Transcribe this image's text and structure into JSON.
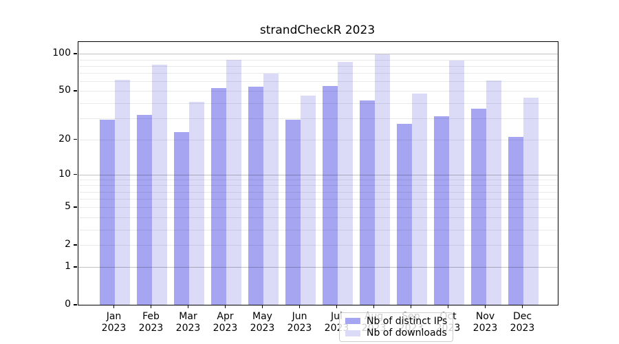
{
  "title": "strandCheckR 2023",
  "colors": {
    "distinct_ips_bar": "#a5a5f1",
    "downloads_bar": "#dbdbf8",
    "axis": "#000000"
  },
  "legend": {
    "items": [
      {
        "label": "Nb of distinct IPs",
        "color": "#a5a5f1"
      },
      {
        "label": "Nb of downloads",
        "color": "#dbdbf8"
      }
    ]
  },
  "chart_data": {
    "type": "bar",
    "title": "strandCheckR 2023",
    "categories": [
      "Jan 2023",
      "Feb 2023",
      "Mar 2023",
      "Apr 2023",
      "May 2023",
      "Jun 2023",
      "Jul 2023",
      "Aug 2023",
      "Sep 2023",
      "Oct 2023",
      "Nov 2023",
      "Dec 2023"
    ],
    "series": [
      {
        "name": "Nb of distinct IPs",
        "color": "#a5a5f1",
        "values": [
          29,
          32,
          23,
          53,
          54,
          29,
          55,
          42,
          27,
          31,
          36,
          21
        ]
      },
      {
        "name": "Nb of downloads",
        "color": "#dbdbf8",
        "values": [
          62,
          82,
          41,
          90,
          69,
          46,
          86,
          99,
          48,
          89,
          61,
          44
        ]
      }
    ],
    "xlabel": "",
    "ylabel": "",
    "yscale": "log1p",
    "ylim": [
      0,
      125
    ],
    "yticks": [
      0,
      1,
      2,
      5,
      10,
      20,
      50,
      100
    ],
    "grid_major_lines": [
      1,
      10,
      100
    ],
    "grid_minor_lines": [
      2,
      3,
      4,
      5,
      6,
      7,
      8,
      9,
      20,
      30,
      40,
      50,
      60,
      70,
      80,
      90
    ],
    "grid": true,
    "legend_position": "lower center"
  }
}
